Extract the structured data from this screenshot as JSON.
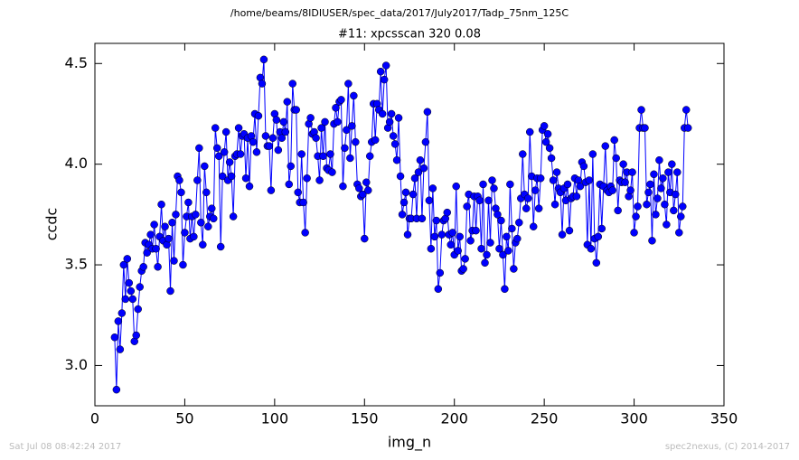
{
  "chart_data": {
    "type": "line",
    "title": "/home/beams/8IDIUSER/spec_data/2017/July2017/Tadp_75nm_125C",
    "subtitle": "#11: xpcsscan 320 0.08",
    "x_label": "img_n",
    "y_label": "ccdc",
    "footer_left": "Sat Jul 08 08:42:24 2017",
    "footer_right": "spec2nexus, (C) 2014-2017",
    "color": "#0000ff",
    "xlim": [
      0,
      350
    ],
    "xticks": [
      0,
      50,
      100,
      150,
      200,
      250,
      300,
      350
    ],
    "ylim": [
      2.8,
      4.6
    ],
    "yticks": [
      {
        "value": 3,
        "label": "3.0"
      },
      {
        "value": 3.5,
        "label": "3.5"
      },
      {
        "value": 4,
        "label": "4.0"
      },
      {
        "value": 4.5,
        "label": "4.5"
      }
    ],
    "x": [
      11,
      12,
      13,
      14,
      15,
      16,
      17,
      18,
      19,
      20,
      21,
      22,
      23,
      24,
      25,
      26,
      27,
      28,
      29,
      30,
      31,
      32,
      33,
      34,
      35,
      36,
      37,
      38,
      39,
      40,
      41,
      42,
      43,
      44,
      45,
      46,
      47,
      48,
      49,
      50,
      51,
      52,
      53,
      54,
      55,
      56,
      57,
      58,
      59,
      60,
      61,
      62,
      63,
      64,
      65,
      66,
      67,
      68,
      69,
      70,
      71,
      72,
      73,
      74,
      75,
      76,
      77,
      78,
      79,
      80,
      81,
      82,
      83,
      84,
      85,
      86,
      87,
      88,
      89,
      90,
      91,
      92,
      93,
      94,
      95,
      96,
      97,
      98,
      99,
      100,
      101,
      102,
      103,
      104,
      105,
      106,
      107,
      108,
      109,
      110,
      111,
      112,
      113,
      114,
      115,
      116,
      117,
      118,
      119,
      120,
      121,
      122,
      123,
      124,
      125,
      126,
      127,
      128,
      129,
      130,
      131,
      132,
      133,
      134,
      135,
      136,
      137,
      138,
      139,
      140,
      141,
      142,
      143,
      144,
      145,
      146,
      147,
      148,
      149,
      150,
      151,
      152,
      153,
      154,
      155,
      156,
      157,
      158,
      159,
      160,
      161,
      162,
      163,
      164,
      165,
      166,
      167,
      168,
      169,
      170,
      171,
      172,
      173,
      174,
      175,
      176,
      177,
      178,
      179,
      180,
      181,
      182,
      183,
      184,
      185,
      186,
      187,
      188,
      189,
      190,
      191,
      192,
      193,
      194,
      195,
      196,
      197,
      198,
      199,
      200,
      201,
      202,
      203,
      204,
      205,
      206,
      207,
      208,
      209,
      210,
      211,
      212,
      213,
      214,
      215,
      216,
      217,
      218,
      219,
      220,
      221,
      222,
      223,
      224,
      225,
      226,
      227,
      228,
      229,
      230,
      231,
      232,
      233,
      234,
      235,
      236,
      237,
      238,
      239,
      240,
      241,
      242,
      243,
      244,
      245,
      246,
      247,
      248,
      249,
      250,
      251,
      252,
      253,
      254,
      255,
      256,
      257,
      258,
      259,
      260,
      261,
      262,
      263,
      264,
      265,
      266,
      267,
      268,
      269,
      270,
      271,
      272,
      273,
      274,
      275,
      276,
      277,
      278,
      279,
      280,
      281,
      282,
      283,
      284,
      285,
      286,
      287,
      288,
      289,
      290,
      291,
      292,
      293,
      294,
      295,
      296,
      297,
      298,
      299,
      300,
      301,
      302,
      303,
      304,
      305,
      306,
      307,
      308,
      309,
      310,
      311,
      312,
      313,
      314,
      315,
      316,
      317,
      318,
      319,
      320,
      321,
      322,
      323,
      324,
      325,
      326,
      327,
      328,
      329,
      330
    ],
    "values": [
      3.14,
      2.88,
      3.22,
      3.08,
      3.26,
      3.5,
      3.33,
      3.53,
      3.41,
      3.37,
      3.33,
      3.12,
      3.15,
      3.28,
      3.39,
      3.47,
      3.49,
      3.61,
      3.56,
      3.6,
      3.65,
      3.58,
      3.7,
      3.58,
      3.49,
      3.64,
      3.8,
      3.62,
      3.69,
      3.6,
      3.63,
      3.37,
      3.71,
      3.52,
      3.75,
      3.94,
      3.92,
      3.86,
      3.5,
      3.66,
      3.74,
      3.81,
      3.63,
      3.74,
      3.64,
      3.75,
      3.92,
      4.08,
      3.71,
      3.6,
      3.99,
      3.86,
      3.69,
      3.74,
      3.78,
      3.73,
      4.18,
      4.08,
      4.04,
      3.59,
      3.94,
      4.06,
      4.16,
      3.92,
      4.01,
      3.94,
      3.74,
      4.04,
      4.05,
      4.18,
      4.05,
      4.14,
      4.15,
      3.93,
      4.13,
      3.89,
      4.14,
      4.11,
      4.25,
      4.06,
      4.24,
      4.43,
      4.4,
      4.52,
      4.14,
      4.09,
      4.09,
      3.87,
      4.13,
      4.25,
      4.22,
      4.07,
      4.16,
      4.13,
      4.21,
      4.16,
      4.31,
      3.9,
      3.99,
      4.4,
      4.27,
      4.27,
      3.86,
      3.81,
      4.05,
      3.81,
      3.66,
      3.93,
      4.2,
      4.23,
      4.15,
      4.16,
      4.13,
      4.04,
      3.92,
      4.18,
      4.04,
      4.21,
      3.98,
      3.97,
      4.05,
      3.96,
      4.2,
      4.28,
      4.21,
      4.31,
      4.32,
      3.89,
      4.08,
      4.17,
      4.4,
      4.03,
      4.19,
      4.34,
      4.11,
      3.9,
      3.88,
      3.84,
      3.85,
      3.63,
      3.91,
      3.87,
      4.04,
      4.11,
      4.3,
      4.12,
      4.3,
      4.27,
      4.46,
      4.25,
      4.42,
      4.49,
      4.18,
      4.21,
      4.25,
      4.14,
      4.1,
      4.02,
      4.23,
      3.94,
      3.75,
      3.81,
      3.86,
      3.65,
      3.73,
      3.73,
      3.85,
      3.93,
      3.73,
      3.96,
      4.02,
      3.73,
      3.98,
      4.11,
      4.26,
      3.82,
      3.58,
      3.88,
      3.64,
      3.72,
      3.38,
      3.46,
      3.65,
      3.72,
      3.73,
      3.76,
      3.65,
      3.6,
      3.66,
      3.55,
      3.89,
      3.57,
      3.64,
      3.47,
      3.48,
      3.53,
      3.79,
      3.85,
      3.62,
      3.67,
      3.84,
      3.67,
      3.84,
      3.82,
      3.58,
      3.9,
      3.51,
      3.55,
      3.82,
      3.61,
      3.92,
      3.88,
      3.78,
      3.75,
      3.58,
      3.72,
      3.55,
      3.38,
      3.64,
      3.57,
      3.9,
      3.68,
      3.48,
      3.61,
      3.63,
      3.71,
      3.83,
      4.05,
      3.85,
      3.78,
      3.83,
      4.16,
      3.94,
      3.69,
      3.87,
      3.93,
      3.78,
      3.93,
      4.17,
      4.19,
      4.11,
      4.15,
      4.08,
      4.03,
      3.92,
      3.8,
      3.96,
      3.88,
      3.86,
      3.65,
      3.88,
      3.82,
      3.9,
      3.67,
      3.83,
      3.84,
      3.93,
      3.84,
      3.92,
      3.89,
      4.01,
      3.99,
      3.91,
      3.6,
      3.92,
      3.58,
      4.05,
      3.63,
      3.51,
      3.64,
      3.9,
      3.68,
      3.89,
      4.09,
      3.87,
      3.86,
      3.89,
      3.87,
      4.12,
      4.03,
      3.77,
      3.92,
      3.91,
      4.0,
      3.91,
      3.96,
      3.84,
      3.87,
      3.96,
      3.66,
      3.74,
      3.79,
      4.18,
      4.27,
      4.18,
      4.18,
      3.8,
      3.86,
      3.9,
      3.62,
      3.95,
      3.75,
      3.83,
      4.02,
      3.88,
      3.93,
      3.8,
      3.7,
      3.96,
      3.86,
      4.0,
      3.77,
      3.85,
      3.96,
      3.66,
      3.74,
      3.79,
      4.18,
      4.27,
      4.18
    ]
  }
}
